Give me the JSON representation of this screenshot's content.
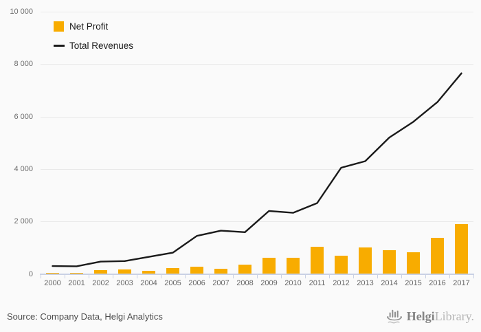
{
  "chart_data": {
    "type": "bar+line",
    "categories": [
      "2000",
      "2001",
      "2002",
      "2003",
      "2004",
      "2005",
      "2006",
      "2007",
      "2008",
      "2009",
      "2010",
      "2011",
      "2012",
      "2013",
      "2014",
      "2015",
      "2016",
      "2017"
    ],
    "series": [
      {
        "name": "Net Profit",
        "type": "bar",
        "color": "#f8ac00",
        "values": [
          50,
          50,
          140,
          160,
          130,
          230,
          270,
          210,
          360,
          620,
          610,
          1040,
          700,
          1000,
          910,
          830,
          1380,
          1890
        ]
      },
      {
        "name": "Total Revenues",
        "type": "line",
        "color": "#1a1a1a",
        "values": [
          300,
          290,
          470,
          490,
          650,
          810,
          1450,
          1650,
          1590,
          2400,
          2330,
          2700,
          4050,
          4300,
          5200,
          5800,
          6550,
          7650
        ]
      }
    ],
    "title": "",
    "xlabel": "",
    "ylabel": "",
    "ylim": [
      0,
      10000
    ],
    "y_tick_values": [
      0,
      2000,
      4000,
      6000,
      8000,
      10000
    ],
    "y_tick_labels": [
      "0",
      "2 000",
      "4 000",
      "6 000",
      "8 000",
      "10 000"
    ],
    "grid": "horizontal",
    "legend_position": "top-left"
  },
  "footer": {
    "source": "Source: Company Data, Helgi Analytics",
    "logo_primary": "Helgi",
    "logo_secondary": "Library."
  }
}
